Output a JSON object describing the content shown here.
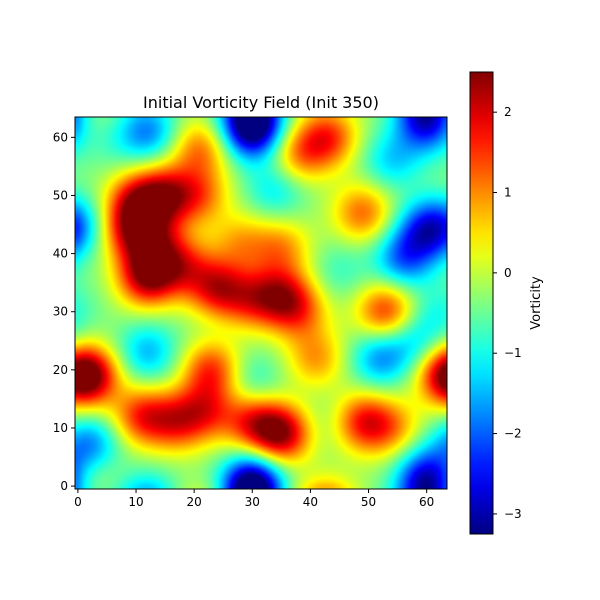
{
  "chart_data": {
    "type": "heatmap",
    "title": "Initial Vorticity Field (Init 350)",
    "xlabel": "",
    "ylabel": "",
    "colorbar_label": "Vorticity",
    "colormap": "jet",
    "grid_size": [
      64,
      64
    ],
    "xlim": [
      -0.5,
      63.5
    ],
    "ylim": [
      -0.5,
      63.5
    ],
    "x_ticks": [
      0,
      10,
      20,
      30,
      40,
      50,
      60
    ],
    "y_ticks": [
      0,
      10,
      20,
      30,
      40,
      50,
      60
    ],
    "color_range": [
      -3.25,
      2.5
    ],
    "colorbar_ticks": [
      -3,
      -2,
      -1,
      0,
      1,
      2
    ],
    "background_level": -0.3,
    "features": [
      {
        "x": 12,
        "y": 36,
        "value": 2.3
      },
      {
        "x": 10,
        "y": 49,
        "value": 1.6
      },
      {
        "x": 15,
        "y": 50,
        "value": 1.8
      },
      {
        "x": 9,
        "y": 44,
        "value": 1.4
      },
      {
        "x": 13,
        "y": 42,
        "value": 1.2
      },
      {
        "x": 21,
        "y": 58,
        "value": 1.1
      },
      {
        "x": 21,
        "y": 50,
        "value": 1.0
      },
      {
        "x": 18,
        "y": 38,
        "value": 1.2
      },
      {
        "x": 24,
        "y": 34,
        "value": 1.8
      },
      {
        "x": 30,
        "y": 32,
        "value": 1.1
      },
      {
        "x": 35,
        "y": 33,
        "value": 1.4
      },
      {
        "x": 38,
        "y": 30,
        "value": 1.0
      },
      {
        "x": 35,
        "y": 41,
        "value": 0.9
      },
      {
        "x": 28,
        "y": 42,
        "value": 0.7
      },
      {
        "x": 41,
        "y": 22,
        "value": 0.9
      },
      {
        "x": 43,
        "y": 60,
        "value": 1.5
      },
      {
        "x": 38,
        "y": 57,
        "value": 1.0
      },
      {
        "x": 49,
        "y": 47,
        "value": 1.2
      },
      {
        "x": 53,
        "y": 30,
        "value": 1.6
      },
      {
        "x": 2,
        "y": 19,
        "value": 2.1
      },
      {
        "x": 11,
        "y": 12,
        "value": 1.5
      },
      {
        "x": 17,
        "y": 11,
        "value": 1.3
      },
      {
        "x": 23,
        "y": 20,
        "value": 1.5
      },
      {
        "x": 22,
        "y": 13,
        "value": 1.2
      },
      {
        "x": 35,
        "y": 9,
        "value": 2.3
      },
      {
        "x": 30,
        "y": 11,
        "value": 1.4
      },
      {
        "x": 49,
        "y": 11,
        "value": 1.6
      },
      {
        "x": 54,
        "y": 10,
        "value": 0.8
      },
      {
        "x": 63,
        "y": 19,
        "value": 1.3
      },
      {
        "x": 2,
        "y": 2,
        "value": 0.3
      },
      {
        "x": 30,
        "y": 61,
        "value": -2.8
      },
      {
        "x": 12,
        "y": 61,
        "value": -1.8
      },
      {
        "x": 60,
        "y": 62,
        "value": -2.0
      },
      {
        "x": 60,
        "y": 44,
        "value": -2.3
      },
      {
        "x": 56,
        "y": 39,
        "value": -1.9
      },
      {
        "x": 54,
        "y": 56,
        "value": -1.3
      },
      {
        "x": 34,
        "y": 51,
        "value": -1.2
      },
      {
        "x": 0,
        "y": 45,
        "value": -1.3
      },
      {
        "x": 12,
        "y": 23,
        "value": -1.5
      },
      {
        "x": 52,
        "y": 22,
        "value": -1.7
      },
      {
        "x": 58,
        "y": 25,
        "value": -1.2
      },
      {
        "x": 2,
        "y": 7,
        "value": -1.9
      },
      {
        "x": 30,
        "y": 1,
        "value": -2.6
      },
      {
        "x": 60,
        "y": 2,
        "value": -2.1
      },
      {
        "x": 30,
        "y": 18,
        "value": -1.0
      },
      {
        "x": 43,
        "y": 11,
        "value": -0.6
      },
      {
        "x": 62,
        "y": 30,
        "value": -0.9
      },
      {
        "x": 45,
        "y": 37,
        "value": -0.8
      },
      {
        "x": 22,
        "y": 28,
        "value": -0.4
      },
      {
        "x": 6,
        "y": 59,
        "value": -0.6
      }
    ]
  }
}
